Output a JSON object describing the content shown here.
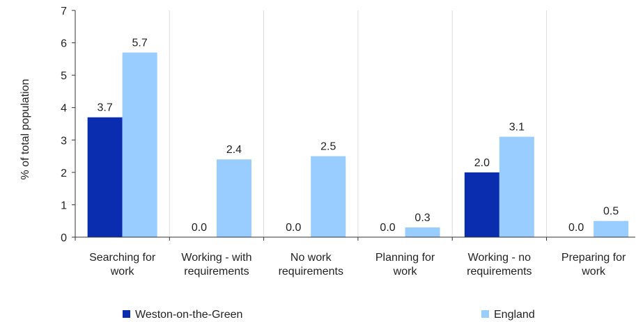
{
  "chart_data": {
    "type": "bar",
    "title": "",
    "xlabel": "",
    "ylabel": "% of total population",
    "ylim": [
      0,
      7
    ],
    "yticks": [
      0,
      1,
      2,
      3,
      4,
      5,
      6,
      7
    ],
    "grid": "vertical separators between categories",
    "legend_position": "bottom",
    "categories": [
      [
        "Searching for",
        "work"
      ],
      [
        "Working - with",
        "requirements"
      ],
      [
        "No work",
        "requirements"
      ],
      [
        "Planning for",
        "work"
      ],
      [
        "Working - no",
        "requirements"
      ],
      [
        "Preparing for",
        "work"
      ]
    ],
    "series": [
      {
        "name": "Weston-on-the-Green",
        "color": "#0a2db0",
        "values": [
          3.7,
          0.0,
          0.0,
          0.0,
          2.0,
          0.0
        ],
        "labels": [
          "3.7",
          "0.0",
          "0.0",
          "0.0",
          "2.0",
          "0.0"
        ]
      },
      {
        "name": "England",
        "color": "#99ccff",
        "values": [
          5.7,
          2.4,
          2.5,
          0.3,
          3.1,
          0.5
        ],
        "labels": [
          "5.7",
          "2.4",
          "2.5",
          "0.3",
          "3.1",
          "0.5"
        ]
      }
    ]
  }
}
